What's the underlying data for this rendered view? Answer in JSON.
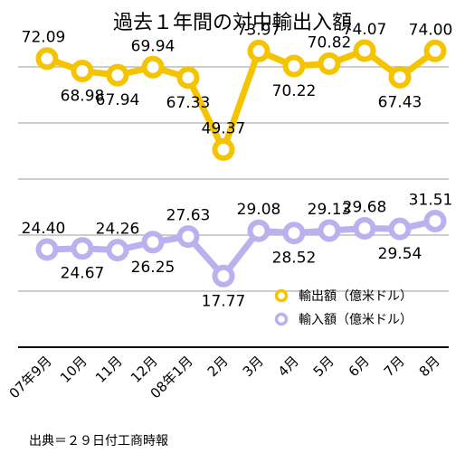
{
  "chart_data": {
    "type": "line",
    "title": "過去１年間の対中輸出入額",
    "categories": [
      "07年9月",
      "10月",
      "11月",
      "12月",
      "08年1月",
      "2月",
      "3月",
      "4月",
      "5月",
      "6月",
      "7月",
      "8月"
    ],
    "series": [
      {
        "name": "輸出額（億米ドル）",
        "color": "#f5c400",
        "values": [
          72.09,
          68.98,
          67.94,
          69.94,
          67.33,
          49.37,
          73.97,
          70.22,
          70.82,
          74.07,
          67.43,
          74.0
        ]
      },
      {
        "name": "輸入額（億米ドル）",
        "color": "#b9b2ee",
        "values": [
          24.4,
          24.67,
          24.26,
          26.25,
          27.63,
          17.77,
          29.08,
          28.52,
          29.13,
          29.68,
          29.54,
          31.51
        ]
      }
    ],
    "data_labels": {
      "export": [
        "72.09",
        "68.98",
        "67.94",
        "69.94",
        "67.33",
        "49.37",
        "73.97",
        "70.22",
        "70.82",
        "74.07",
        "67.43",
        "74.00"
      ],
      "import": [
        "24.40",
        "24.67",
        "24.26",
        "26.25",
        "27.63",
        "17.77",
        "29.08",
        "28.52",
        "29.13",
        "29.68",
        "29.54",
        "31.51"
      ]
    },
    "ylim": [
      0,
      84
    ],
    "grid": true,
    "legend": "bottom-right"
  },
  "source_note": "出典＝２９日付工商時報"
}
